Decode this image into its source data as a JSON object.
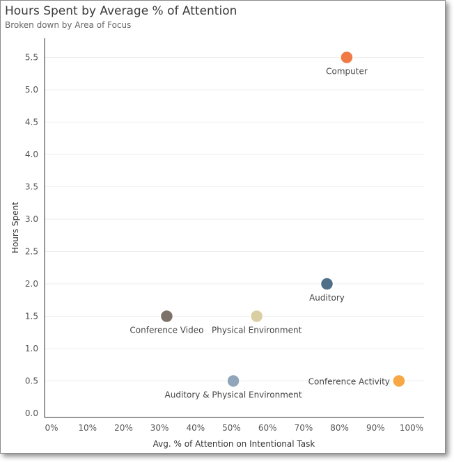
{
  "chart_data": {
    "type": "scatter",
    "title": "Hours Spent by Average % of Attention",
    "subtitle": "Broken down by Area of Focus",
    "xlabel": "Avg. % of Attention on Intentional Task",
    "ylabel": "Hours Spent",
    "xlim": [
      0,
      100
    ],
    "ylim": [
      0,
      5.8
    ],
    "x_ticks": [
      "0%",
      "10%",
      "20%",
      "30%",
      "40%",
      "50%",
      "60%",
      "70%",
      "80%",
      "90%",
      "100%"
    ],
    "y_ticks": [
      "0.0",
      "0.5",
      "1.0",
      "1.5",
      "2.0",
      "2.5",
      "3.0",
      "3.5",
      "4.0",
      "4.5",
      "5.0",
      "5.5"
    ],
    "grid": "horizontal",
    "points": [
      {
        "label": "Computer",
        "x": 82,
        "y": 5.5,
        "color": "#f07a45"
      },
      {
        "label": "Auditory",
        "x": 76.5,
        "y": 2.0,
        "color": "#4f6e88"
      },
      {
        "label": "Conference Video",
        "x": 32,
        "y": 1.5,
        "color": "#7d7267"
      },
      {
        "label": "Physical Environment",
        "x": 57,
        "y": 1.5,
        "color": "#d9cfa2"
      },
      {
        "label": "Auditory & Physical Environment",
        "x": 50.5,
        "y": 0.5,
        "color": "#8fa6bb"
      },
      {
        "label": "Conference Activity",
        "x": 96.5,
        "y": 0.5,
        "color": "#f7a845"
      }
    ]
  }
}
